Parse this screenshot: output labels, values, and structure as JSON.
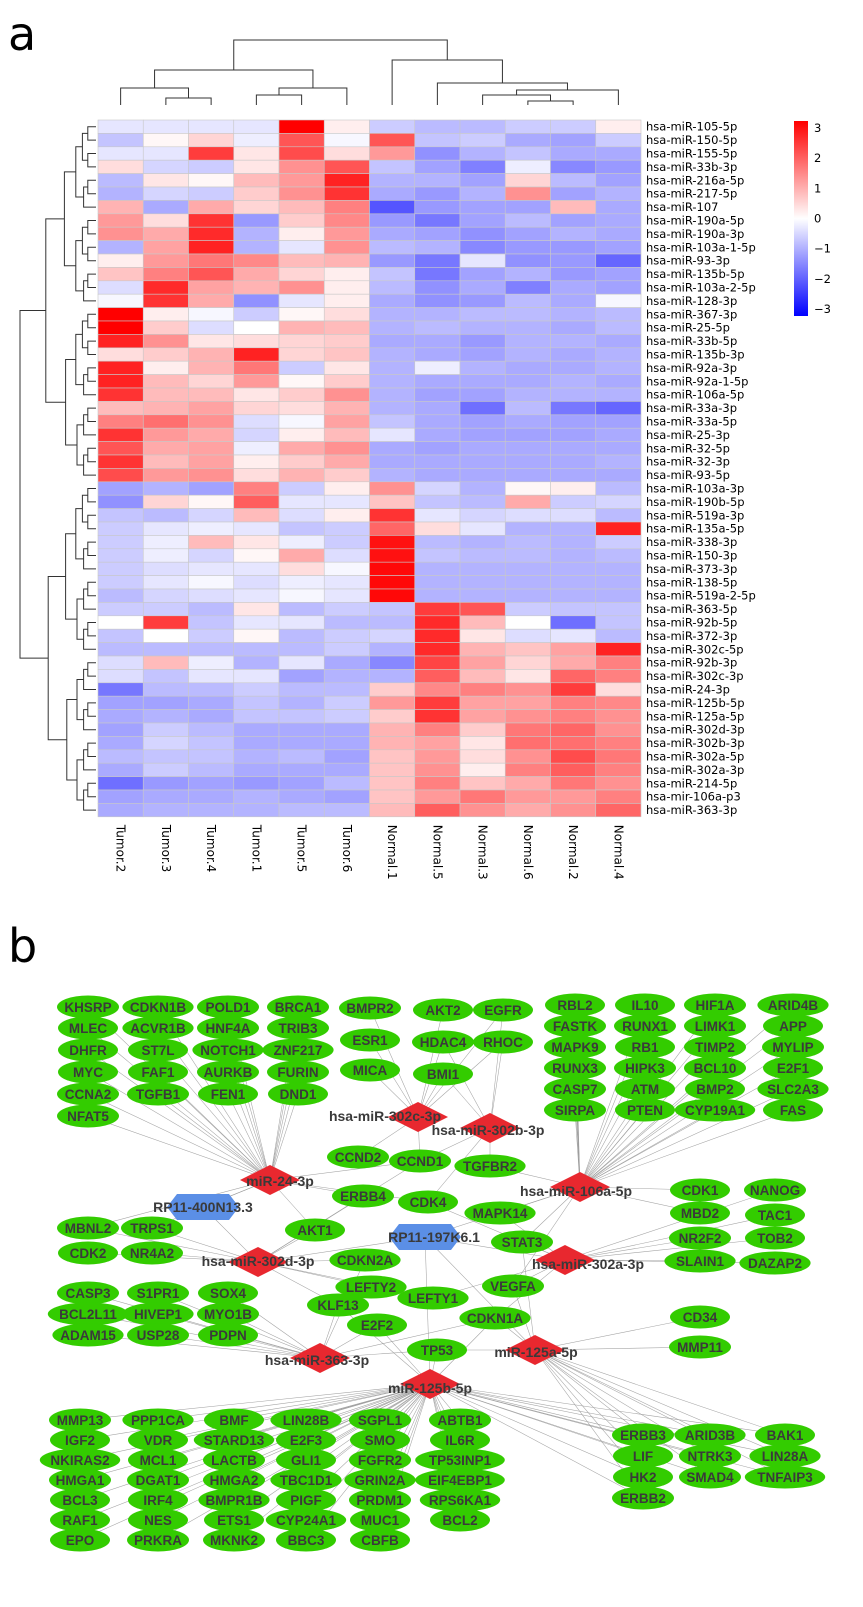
{
  "panel_a": {
    "label": "a",
    "chart_data": {
      "type": "heatmap",
      "columns": [
        "Tumor.2",
        "Tumor.3",
        "Tumor.4",
        "Tumor.1",
        "Tumor.5",
        "Tumor.6",
        "Normal.1",
        "Normal.5",
        "Normal.3",
        "Normal.6",
        "Normal.2",
        "Normal.4"
      ],
      "rows": [
        "hsa-miR-105-5p",
        "hsa-miR-150-5p",
        "hsa-miR-155-5p",
        "hsa-miR-33b-3p",
        "hsa-miR-216a-5p",
        "hsa-miR-217-5p",
        "hsa-miR-107",
        "hsa-miR-190a-5p",
        "hsa-miR-190a-3p",
        "hsa-miR-103a-1-5p",
        "hsa-miR-93-3p",
        "hsa-miR-135b-5p",
        "hsa-miR-103a-2-5p",
        "hsa-miR-128-3p",
        "hsa-miR-367-3p",
        "hsa-miR-25-5p",
        "hsa-miR-33b-5p",
        "hsa-miR-135b-3p",
        "hsa-miR-92a-3p",
        "hsa-miR-92a-1-5p",
        "hsa-miR-106a-5p",
        "hsa-miR-33a-3p",
        "hsa-miR-33a-5p",
        "hsa-miR-25-3p",
        "hsa-miR-32-5p",
        "hsa-miR-32-3p",
        "hsa-miR-93-5p",
        "hsa-miR-103a-3p",
        "hsa-miR-190b-5p",
        "hsa-miR-519a-3p",
        "hsa-miR-135a-5p",
        "hsa-miR-338-3p",
        "hsa-miR-150-3p",
        "hsa-miR-373-3p",
        "hsa-miR-138-5p",
        "hsa-miR-519a-2-5p",
        "hsa-miR-363-5p",
        "hsa-miR-92b-5p",
        "hsa-miR-372-3p",
        "hsa-miR-302c-5p",
        "hsa-miR-92b-3p",
        "hsa-miR-302c-3p",
        "hsa-miR-24-3p",
        "hsa-miR-125b-5p",
        "hsa-miR-125a-5p",
        "hsa-miR-302d-3p",
        "hsa-miR-302b-3p",
        "hsa-miR-302a-5p",
        "hsa-miR-302a-3p",
        "hsa-miR-214-5p",
        "hsa-mir-106a-p3",
        "hsa-miR-363-3p"
      ],
      "values": [
        [
          -0.3,
          -0.3,
          -0.3,
          -0.3,
          3.0,
          0.2,
          -0.6,
          -0.8,
          -0.8,
          -0.6,
          -0.6,
          0.2
        ],
        [
          -0.7,
          0.1,
          0.5,
          -0.2,
          2.0,
          -0.1,
          2.0,
          -0.7,
          -0.6,
          -1.0,
          -1.1,
          -0.6
        ],
        [
          -0.3,
          -0.3,
          2.3,
          0.3,
          2.1,
          0.4,
          1.2,
          -1.3,
          -0.9,
          -0.7,
          -1.0,
          -1.0
        ],
        [
          0.4,
          -0.5,
          -0.6,
          0.3,
          1.3,
          2.0,
          -0.7,
          -1.1,
          -1.5,
          -0.2,
          -1.4,
          -1.2
        ],
        [
          -0.8,
          0.3,
          0.1,
          0.8,
          1.2,
          2.6,
          -0.9,
          -0.9,
          -1.1,
          0.5,
          -0.8,
          -1.1
        ],
        [
          -0.9,
          -0.5,
          -0.6,
          0.6,
          1.3,
          2.4,
          -1.0,
          -1.2,
          -0.9,
          1.3,
          -1.1,
          -0.9
        ],
        [
          0.9,
          -1.0,
          1.0,
          0.5,
          0.8,
          1.5,
          -2.0,
          -1.2,
          -1.1,
          -1.1,
          0.8,
          -1.0
        ],
        [
          1.2,
          0.4,
          2.4,
          -1.2,
          0.6,
          1.4,
          -1.2,
          -1.6,
          -1.1,
          -0.8,
          -1.1,
          -1.0
        ],
        [
          1.3,
          1.0,
          2.5,
          -0.9,
          0.2,
          1.2,
          -1.0,
          -1.1,
          -1.3,
          -1.1,
          -0.9,
          -1.0
        ],
        [
          -0.9,
          1.1,
          2.6,
          -0.9,
          -0.3,
          1.3,
          -0.8,
          -0.9,
          -1.4,
          -1.2,
          -1.2,
          -1.1
        ],
        [
          0.2,
          1.2,
          1.6,
          1.4,
          0.8,
          0.9,
          -1.2,
          -1.6,
          -0.3,
          -1.3,
          -1.2,
          -1.8
        ],
        [
          0.7,
          1.5,
          2.0,
          1.0,
          0.5,
          0.2,
          -0.7,
          -1.6,
          -1.1,
          -0.9,
          -1.2,
          -1.1
        ],
        [
          -0.4,
          2.5,
          1.1,
          0.9,
          1.3,
          0.2,
          -0.8,
          -1.3,
          -1.0,
          -1.5,
          -1.0,
          -1.1
        ],
        [
          -0.1,
          2.4,
          1.0,
          -1.3,
          -0.3,
          0.2,
          -1.0,
          -1.3,
          -1.2,
          -0.8,
          -1.0,
          -0.1
        ],
        [
          3.0,
          0.2,
          -0.1,
          -0.6,
          0.1,
          0.4,
          -0.9,
          -0.9,
          -0.8,
          -0.8,
          -0.9,
          -0.8
        ],
        [
          3.0,
          0.6,
          -0.4,
          0.0,
          0.9,
          0.8,
          -0.9,
          -0.8,
          -0.9,
          -0.9,
          -1.0,
          -0.8
        ],
        [
          2.6,
          1.3,
          0.3,
          0.4,
          0.5,
          0.6,
          -1.0,
          -1.0,
          -1.2,
          -0.9,
          -0.9,
          -1.0
        ],
        [
          0.4,
          0.6,
          0.9,
          2.6,
          0.5,
          0.7,
          -0.9,
          -1.0,
          -1.1,
          -0.9,
          -1.0,
          -0.9
        ],
        [
          2.6,
          0.2,
          0.9,
          1.6,
          -0.6,
          0.3,
          -0.9,
          -0.2,
          -0.9,
          -1.0,
          -1.0,
          -0.9
        ],
        [
          2.6,
          0.8,
          0.5,
          1.2,
          0.1,
          0.6,
          -0.9,
          -1.0,
          -1.0,
          -1.0,
          -0.9,
          -1.0
        ],
        [
          2.4,
          0.8,
          0.8,
          0.3,
          0.6,
          1.3,
          -0.9,
          -1.1,
          -1.1,
          -0.9,
          -0.9,
          -0.9
        ],
        [
          0.8,
          0.9,
          1.1,
          0.5,
          0.4,
          0.9,
          -0.9,
          -1.0,
          -1.7,
          -0.8,
          -1.6,
          -1.8
        ],
        [
          1.5,
          1.7,
          1.3,
          -0.4,
          -0.1,
          1.1,
          -0.7,
          -1.0,
          -1.1,
          -1.0,
          -1.1,
          -1.1
        ],
        [
          2.4,
          1.2,
          1.0,
          -0.5,
          0.2,
          0.8,
          -0.3,
          -1.0,
          -1.1,
          -1.1,
          -1.1,
          -1.0
        ],
        [
          2.0,
          1.0,
          1.1,
          -0.2,
          1.0,
          1.3,
          -1.0,
          -1.1,
          -1.0,
          -1.0,
          -1.0,
          -1.0
        ],
        [
          2.4,
          0.8,
          1.1,
          0.2,
          0.6,
          1.0,
          -1.0,
          -1.0,
          -1.0,
          -1.0,
          -1.0,
          -0.9
        ],
        [
          2.1,
          1.2,
          1.3,
          0.4,
          0.9,
          0.6,
          -0.9,
          -1.0,
          -1.0,
          -1.0,
          -1.0,
          -1.0
        ],
        [
          -1.1,
          -0.9,
          -1.1,
          1.5,
          -0.6,
          0.2,
          1.3,
          -0.5,
          -0.9,
          0.1,
          0.2,
          -0.8
        ],
        [
          -1.3,
          0.5,
          0.1,
          1.9,
          -0.3,
          -0.3,
          0.7,
          -0.7,
          -0.8,
          1.0,
          -0.6,
          -0.5
        ],
        [
          -0.7,
          -0.8,
          -0.5,
          0.8,
          -0.4,
          0.2,
          2.4,
          -0.3,
          -0.5,
          -0.4,
          -0.4,
          -0.8
        ],
        [
          -0.6,
          -0.3,
          -0.2,
          -0.3,
          -0.7,
          -0.6,
          1.8,
          0.4,
          -0.3,
          -0.9,
          -0.9,
          2.6
        ],
        [
          -0.6,
          -0.2,
          0.8,
          0.3,
          -0.2,
          -0.6,
          2.8,
          -0.8,
          -0.9,
          -0.8,
          -0.9,
          -0.6
        ],
        [
          -0.6,
          -0.2,
          -0.5,
          0.1,
          1.0,
          -0.4,
          2.8,
          -0.7,
          -0.8,
          -0.8,
          -0.9,
          -0.8
        ],
        [
          -0.6,
          -0.4,
          -0.3,
          -0.3,
          0.4,
          -0.1,
          2.9,
          -0.9,
          -0.9,
          -0.9,
          -0.9,
          -0.9
        ],
        [
          -0.6,
          -0.3,
          -0.1,
          -0.4,
          -0.2,
          -0.3,
          2.9,
          -0.9,
          -0.9,
          -0.9,
          -0.9,
          -0.9
        ],
        [
          -0.8,
          -0.5,
          -0.4,
          -0.3,
          -0.1,
          -0.3,
          2.9,
          -0.9,
          -0.9,
          -0.9,
          -0.9,
          -0.9
        ],
        [
          -0.6,
          -0.6,
          -0.8,
          0.3,
          -0.8,
          -0.6,
          -0.7,
          2.3,
          2.0,
          -0.6,
          -0.7,
          -0.7
        ],
        [
          0.0,
          2.3,
          -0.7,
          -0.3,
          -0.3,
          -0.8,
          -0.8,
          2.5,
          0.8,
          0.0,
          -1.7,
          -0.7
        ],
        [
          -0.7,
          0.0,
          -0.6,
          0.1,
          -0.8,
          -0.6,
          -0.5,
          2.5,
          0.3,
          -0.4,
          -0.3,
          -0.8
        ],
        [
          -0.8,
          -0.8,
          -0.8,
          -0.8,
          -0.8,
          -0.6,
          -0.9,
          2.5,
          0.9,
          0.7,
          1.1,
          2.6
        ],
        [
          -0.4,
          0.8,
          -0.2,
          -0.9,
          -0.3,
          -1.0,
          -1.4,
          2.2,
          1.1,
          0.5,
          1.0,
          1.5
        ],
        [
          -0.4,
          -0.7,
          -0.3,
          -0.3,
          -1.1,
          -0.9,
          -0.9,
          1.9,
          0.8,
          0.3,
          1.8,
          1.5
        ],
        [
          -1.6,
          -0.8,
          -0.8,
          -0.6,
          -0.8,
          -0.8,
          0.6,
          1.4,
          1.5,
          1.3,
          2.3,
          0.4
        ],
        [
          -1.1,
          -1.1,
          -1.0,
          -0.7,
          -0.9,
          -0.6,
          1.2,
          2.3,
          1.1,
          1.1,
          1.5,
          1.4
        ],
        [
          -1.0,
          -0.9,
          -1.0,
          -0.7,
          -0.7,
          -0.6,
          0.6,
          2.4,
          1.1,
          1.3,
          1.5,
          1.3
        ],
        [
          -1.1,
          -0.6,
          -0.8,
          -1.0,
          -1.0,
          -1.0,
          0.9,
          1.5,
          0.6,
          1.6,
          1.8,
          1.3
        ],
        [
          -1.0,
          -0.5,
          -0.7,
          -1.0,
          -1.0,
          -1.0,
          0.9,
          1.1,
          0.3,
          1.7,
          1.7,
          1.5
        ],
        [
          -0.8,
          -0.7,
          -0.7,
          -0.9,
          -0.8,
          -1.1,
          0.7,
          1.2,
          0.4,
          1.3,
          2.1,
          1.6
        ],
        [
          -1.0,
          -0.6,
          -0.8,
          -1.0,
          -1.0,
          -1.0,
          0.7,
          1.3,
          0.2,
          1.5,
          1.9,
          1.5
        ],
        [
          -1.7,
          -1.2,
          -1.1,
          -1.2,
          -1.1,
          -0.8,
          0.7,
          1.5,
          0.7,
          1.0,
          1.6,
          1.3
        ],
        [
          -1.1,
          -1.0,
          -1.0,
          -0.9,
          -1.0,
          -1.1,
          0.7,
          1.2,
          1.6,
          1.2,
          1.2,
          1.5
        ],
        [
          -1.0,
          -0.9,
          -0.9,
          -0.9,
          -0.8,
          -0.8,
          0.8,
          1.9,
          1.3,
          1.0,
          1.3,
          1.8
        ]
      ],
      "color_scale": {
        "min": -3,
        "max": 3,
        "ticks": [
          "3",
          "2",
          "1",
          "0",
          "−1",
          "−2",
          "−3"
        ],
        "low_color": "#0000ff",
        "mid_color": "#ffffff",
        "high_color": "#ff0000"
      },
      "grid": true,
      "legend": "right"
    }
  },
  "panel_b": {
    "label": "b",
    "colors": {
      "gene": "#33cc00",
      "mirna": "#e8282f",
      "lncrna": "#5b8fe6",
      "edge": "#9a9a9a",
      "label": "#3a3a3a"
    },
    "lncrnas": [
      "RP11-400N13.3",
      "RP11-197K6.1"
    ],
    "mirnas": [
      "hsa-miR-302c-3p",
      "hsa-miR-302b-3p",
      "miR-24-3p",
      "hsa-miR-106a-5p",
      "hsa-miR-302d-3p",
      "hsa-miR-302a-3p",
      "hsa-miR-363-3p",
      "miR-125a-5p",
      "miR-125b-5p"
    ],
    "genes": [
      "KHSRP",
      "CDKN1B",
      "POLD1",
      "BRCA1",
      "MLEC",
      "ACVR1B",
      "HNF4A",
      "TRIB3",
      "DHFR",
      "ST7L",
      "NOTCH1",
      "ZNF217",
      "MYC",
      "FAF1",
      "AURKB",
      "FURIN",
      "CCNA2",
      "TGFB1",
      "FEN1",
      "DND1",
      "NFAT5",
      "BMPR2",
      "AKT2",
      "EGFR",
      "ESR1",
      "HDAC4",
      "RHOC",
      "MICA",
      "BMI1",
      "RBL2",
      "IL10",
      "HIF1A",
      "ARID4B",
      "FASTK",
      "RUNX1",
      "LIMK1",
      "APP",
      "MAPK9",
      "RB1",
      "TIMP2",
      "MYLIP",
      "RUNX3",
      "HIPK3",
      "BCL10",
      "E2F1",
      "CASP7",
      "ATM",
      "BMP2",
      "SLC2A3",
      "SIRPA",
      "PTEN",
      "CYP19A1",
      "FAS",
      "CCND2",
      "CCND1",
      "TGFBR2",
      "ERBB4",
      "CDK4",
      "MAPK14",
      "AKT1",
      "STAT3",
      "CDKN2A",
      "LEFTY2",
      "LEFTY1",
      "VEGFA",
      "KLF13",
      "CDKN1A",
      "E2F2",
      "TP53",
      "CDK1",
      "NANOG",
      "MBD2",
      "TAC1",
      "NR2F2",
      "TOB2",
      "SLAIN1",
      "DAZAP2",
      "MBNL2",
      "TRPS1",
      "CDK2",
      "NR4A2",
      "CASP3",
      "S1PR1",
      "SOX4",
      "BCL2L11",
      "HIVEP1",
      "MYO1B",
      "ADAM15",
      "USP28",
      "PDPN",
      "CD34",
      "MMP11",
      "MMP13",
      "PPP1CA",
      "BMF",
      "LIN28B",
      "SGPL1",
      "ABTB1",
      "IGF2",
      "VDR",
      "STARD13",
      "E2F3",
      "SMO",
      "IL6R",
      "NKIRAS2",
      "MCL1",
      "LACTB",
      "GLI1",
      "FGFR2",
      "TP53INP1",
      "HMGA1",
      "DGAT1",
      "HMGA2",
      "TBC1D1",
      "GRIN2A",
      "EIF4EBP1",
      "BCL3",
      "IRF4",
      "BMPR1B",
      "PIGF",
      "PRDM1",
      "RPS6KA1",
      "RAF1",
      "NES",
      "ETS1",
      "CYP24A1",
      "MUC1",
      "BCL2",
      "EPO",
      "PRKRA",
      "MKNK2",
      "BBC3",
      "CBFB",
      "ERBB3",
      "ARID3B",
      "BAK1",
      "LIF",
      "NTRK3",
      "LIN28A",
      "HK2",
      "SMAD4",
      "TNFAIP3",
      "ERBB2"
    ]
  }
}
